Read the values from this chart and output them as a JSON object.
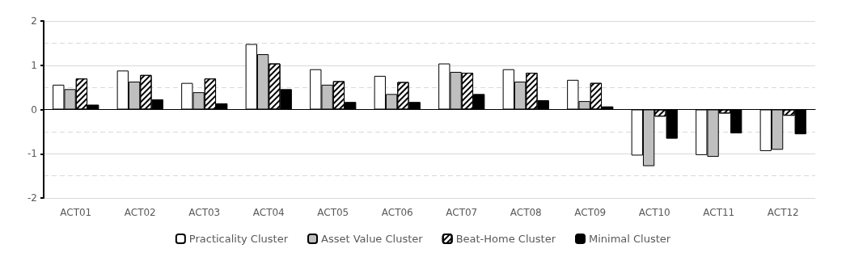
{
  "chart_data": {
    "type": "bar",
    "categories": [
      "ACT01",
      "ACT02",
      "ACT03",
      "ACT04",
      "ACT05",
      "ACT06",
      "ACT07",
      "ACT08",
      "ACT09",
      "ACT10",
      "ACT11",
      "ACT12"
    ],
    "series": [
      {
        "name": "Practicality Cluster",
        "color": "#ffffff",
        "values": [
          0.56,
          0.88,
          0.6,
          1.48,
          0.91,
          0.76,
          1.04,
          0.91,
          0.67,
          -1.04,
          -1.03,
          -0.94
        ]
      },
      {
        "name": "Asset Value Cluster",
        "color": "#bfbfbf",
        "values": [
          0.46,
          0.63,
          0.39,
          1.25,
          0.56,
          0.35,
          0.85,
          0.63,
          0.19,
          -1.28,
          -1.07,
          -0.91
        ]
      },
      {
        "name": "Beat-Home Cluster",
        "color": "#ffffff",
        "values": [
          0.7,
          0.78,
          0.7,
          1.04,
          0.64,
          0.62,
          0.83,
          0.83,
          0.6,
          -0.16,
          -0.09,
          -0.14
        ]
      },
      {
        "name": "Minimal Cluster",
        "color": "#000000",
        "values": [
          0.11,
          0.23,
          0.14,
          0.46,
          0.17,
          0.17,
          0.35,
          0.21,
          0.07,
          -0.66,
          -0.54,
          -0.56
        ]
      }
    ],
    "ylim": [
      -2,
      2
    ],
    "yticks": [
      -2,
      -1,
      0,
      1,
      2
    ],
    "grid": "y",
    "legend": "bottom"
  }
}
